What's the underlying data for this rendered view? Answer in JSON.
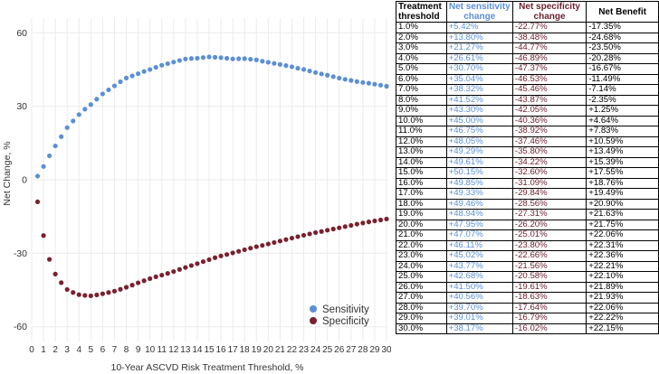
{
  "colors": {
    "sensitivity": "#5b8fd6",
    "specificity": "#7a2030",
    "grid": "#ebebeb"
  },
  "chart_data": {
    "type": "scatter",
    "xlabel": "10-Year ASCVD Risk Treatment Threshold, %",
    "ylabel": "Net Change, %",
    "xlim": [
      0,
      30
    ],
    "ylim": [
      -66,
      66
    ],
    "xticks": [
      "0",
      "1",
      "2",
      "3",
      "4",
      "5",
      "6",
      "7",
      "8",
      "9",
      "10",
      "11",
      "12",
      "13",
      "14",
      "15",
      "16",
      "17",
      "18",
      "19",
      "20",
      "21",
      "22",
      "23",
      "24",
      "25",
      "26",
      "27",
      "28",
      "29",
      "30"
    ],
    "yticks": [
      "60",
      "30",
      "0",
      "-30",
      "-60"
    ],
    "grid": true,
    "legend_position": "bottom-right",
    "x": [
      0.5,
      1,
      1.5,
      2,
      2.5,
      3,
      3.5,
      4,
      4.5,
      5,
      5.5,
      6,
      6.5,
      7,
      7.5,
      8,
      8.5,
      9,
      9.5,
      10,
      10.5,
      11,
      11.5,
      12,
      12.5,
      13,
      13.5,
      14,
      14.5,
      15,
      15.5,
      16,
      16.5,
      17,
      17.5,
      18,
      18.5,
      19,
      19.5,
      20,
      20.5,
      21,
      21.5,
      22,
      22.5,
      23,
      23.5,
      24,
      24.5,
      25,
      25.5,
      26,
      26.5,
      27,
      27.5,
      28,
      28.5,
      29,
      29.5,
      30
    ],
    "series": [
      {
        "name": "Sensitivity",
        "values": [
          1.5,
          5.42,
          9.8,
          13.8,
          17.6,
          21.27,
          24.0,
          26.61,
          28.8,
          30.7,
          32.9,
          35.04,
          36.7,
          38.32,
          40.0,
          41.52,
          42.4,
          43.3,
          44.2,
          45.0,
          45.9,
          46.75,
          47.4,
          48.05,
          48.7,
          49.29,
          49.5,
          49.61,
          49.9,
          50.15,
          50.0,
          49.85,
          49.6,
          49.33,
          49.4,
          49.46,
          49.2,
          48.94,
          48.4,
          47.95,
          47.5,
          47.07,
          46.6,
          46.11,
          45.5,
          45.02,
          44.4,
          43.77,
          43.2,
          42.68,
          42.1,
          41.5,
          41.0,
          40.56,
          40.1,
          39.7,
          39.4,
          39.01,
          38.6,
          38.17
        ]
      },
      {
        "name": "Specificity",
        "values": [
          -9.0,
          -22.77,
          -32.5,
          -38.48,
          -42.0,
          -44.77,
          -46.0,
          -46.89,
          -47.2,
          -47.37,
          -47.0,
          -46.53,
          -46.0,
          -45.46,
          -44.7,
          -43.87,
          -43.0,
          -42.05,
          -41.2,
          -40.36,
          -39.6,
          -38.92,
          -38.2,
          -37.46,
          -36.6,
          -35.8,
          -35.0,
          -34.22,
          -33.4,
          -32.6,
          -31.8,
          -31.09,
          -30.5,
          -29.84,
          -29.2,
          -28.56,
          -27.9,
          -27.31,
          -26.8,
          -26.2,
          -25.6,
          -25.01,
          -24.4,
          -23.8,
          -23.2,
          -22.66,
          -22.1,
          -21.56,
          -21.1,
          -20.58,
          -20.1,
          -19.61,
          -19.1,
          -18.63,
          -18.1,
          -17.64,
          -17.2,
          -16.79,
          -16.4,
          -16.02
        ]
      }
    ]
  },
  "table": {
    "headers": [
      "Treatment threshold",
      "Net sensitivity change",
      "Net specificity change",
      "Net Benefit"
    ],
    "rows": [
      [
        "1.0%",
        "+5.42%",
        "-22.77%",
        "-17.35%"
      ],
      [
        "2.0%",
        "+13.80%",
        "-38.48%",
        "-24.68%"
      ],
      [
        "3.0%",
        "+21.27%",
        "-44.77%",
        "-23.50%"
      ],
      [
        "4.0%",
        "+26.61%",
        "-46.89%",
        "-20.28%"
      ],
      [
        "5.0%",
        "+30.70%",
        "-47.37%",
        "-16.67%"
      ],
      [
        "6.0%",
        "+35.04%",
        "-46.53%",
        "-11.49%"
      ],
      [
        "7.0%",
        "+38.32%",
        "-45.46%",
        "-7.14%"
      ],
      [
        "8.0%",
        "+41.52%",
        "-43.87%",
        "-2.35%"
      ],
      [
        "9.0%",
        "+43.30%",
        "-42.05%",
        "+1.25%"
      ],
      [
        "10.0%",
        "+45.00%",
        "-40.36%",
        "+4.64%"
      ],
      [
        "11.0%",
        "+46.75%",
        "-38.92%",
        "+7.83%"
      ],
      [
        "12.0%",
        "+48.05%",
        "-37.46%",
        "+10.59%"
      ],
      [
        "13.0%",
        "+49.29%",
        "-35.80%",
        "+13.49%"
      ],
      [
        "14.0%",
        "+49.61%",
        "-34.22%",
        "+15.39%"
      ],
      [
        "15.0%",
        "+50.15%",
        "-32.60%",
        "+17.55%"
      ],
      [
        "16.0%",
        "+49.85%",
        "-31.09%",
        "+18.76%"
      ],
      [
        "17.0%",
        "+49.33%",
        "-29.84%",
        "+19.49%"
      ],
      [
        "18.0%",
        "+49.46%",
        "-28.56%",
        "+20.90%"
      ],
      [
        "19.0%",
        "+48.94%",
        "-27.31%",
        "+21.63%"
      ],
      [
        "20.0%",
        "+47.95%",
        "-26.20%",
        "+21.75%"
      ],
      [
        "21.0%",
        "+47.07%",
        "-25.01%",
        "+22.06%"
      ],
      [
        "22.0%",
        "+46.11%",
        "-23.80%",
        "+22.31%"
      ],
      [
        "23.0%",
        "+45.02%",
        "-22.66%",
        "+22.36%"
      ],
      [
        "24.0%",
        "+43.77%",
        "-21.56%",
        "+22.21%"
      ],
      [
        "25.0%",
        "+42.68%",
        "-20.58%",
        "+22.10%"
      ],
      [
        "26.0%",
        "+41.50%",
        "-19.61%",
        "+21.89%"
      ],
      [
        "27.0%",
        "+40.56%",
        "-18.63%",
        "+21.93%"
      ],
      [
        "28.0%",
        "+39.70%",
        "-17.64%",
        "+22.06%"
      ],
      [
        "29.0%",
        "+39.01%",
        "-16.79%",
        "+22.22%"
      ],
      [
        "30.0%",
        "+38.17%",
        "-16.02%",
        "+22.15%"
      ]
    ]
  }
}
